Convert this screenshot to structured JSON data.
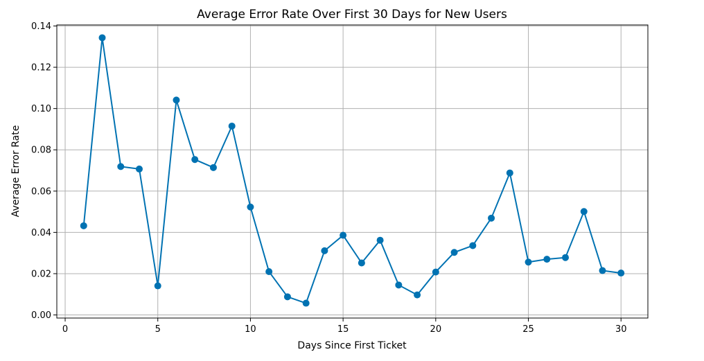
{
  "chart_data": {
    "type": "line",
    "title": "Average Error Rate Over First 30 Days for New Users",
    "xlabel": "Days Since First Ticket",
    "ylabel": "Average Error Rate",
    "xlim": [
      -0.45,
      31.45
    ],
    "ylim": [
      -0.0015,
      0.1405
    ],
    "xticks": [
      0,
      5,
      10,
      15,
      20,
      25,
      30
    ],
    "xtick_labels": [
      "0",
      "5",
      "10",
      "15",
      "20",
      "25",
      "30"
    ],
    "yticks": [
      0.0,
      0.02,
      0.04,
      0.06,
      0.08,
      0.1,
      0.12,
      0.14
    ],
    "ytick_labels": [
      "0.00",
      "0.02",
      "0.04",
      "0.06",
      "0.08",
      "0.10",
      "0.12",
      "0.14"
    ],
    "grid": true,
    "marker": "circle",
    "color": "#0072B2",
    "x": [
      1,
      2,
      3,
      4,
      5,
      6,
      7,
      8,
      9,
      10,
      11,
      12,
      13,
      14,
      15,
      16,
      17,
      18,
      19,
      20,
      21,
      22,
      23,
      24,
      25,
      26,
      27,
      28,
      29,
      30
    ],
    "y": [
      0.0432,
      0.1343,
      0.0719,
      0.0707,
      0.0141,
      0.1041,
      0.0753,
      0.0714,
      0.0915,
      0.0523,
      0.021,
      0.0088,
      0.0057,
      0.0311,
      0.0386,
      0.0252,
      0.0362,
      0.0145,
      0.0097,
      0.0208,
      0.0303,
      0.0336,
      0.0469,
      0.0688,
      0.0256,
      0.027,
      0.0278,
      0.0501,
      0.0215,
      0.0203
    ]
  }
}
